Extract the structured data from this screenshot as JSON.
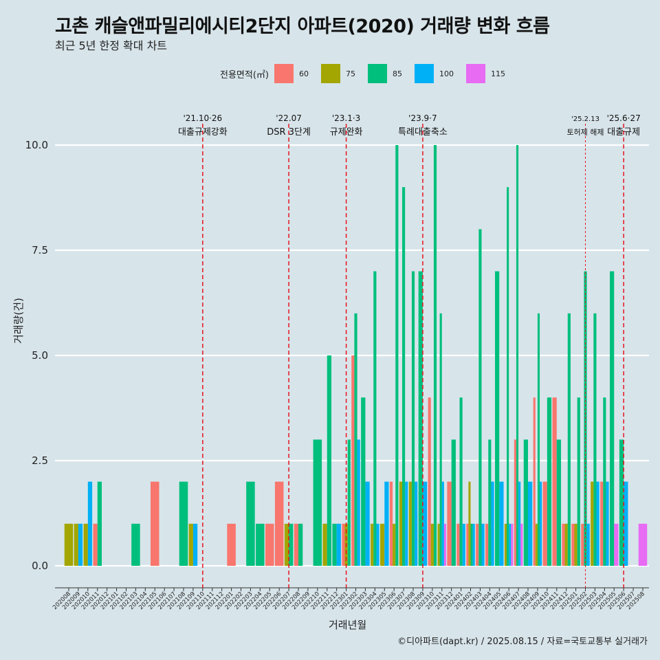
{
  "title": "고촌 캐슬앤파밀리에시티2단지 아파트(2020) 거래량 변화 흐름",
  "subtitle": "최근 5년 한정 확대 차트",
  "caption": "©디아파트(dapt.kr) / 2025.08.15 / 자료=국토교통부 실거래가",
  "legend": {
    "title": "전용면적(㎡)",
    "items": [
      {
        "label": "60",
        "color": "#F8766D"
      },
      {
        "label": "75",
        "color": "#A3A500"
      },
      {
        "label": "85",
        "color": "#00BF7D"
      },
      {
        "label": "100",
        "color": "#00B0F6"
      },
      {
        "label": "115",
        "color": "#E76BF3"
      }
    ]
  },
  "chart_data": {
    "type": "bar",
    "xlabel": "거래년월",
    "ylabel": "거래량(건)",
    "ylim": [
      0,
      10
    ],
    "yticks": [
      "0.0",
      "2.5",
      "5.0",
      "7.5",
      "10.0"
    ],
    "grid": true,
    "legend_position": "top",
    "categories": [
      "202008",
      "202009",
      "202010",
      "202011",
      "202012",
      "202101",
      "202102",
      "202103",
      "202104",
      "202105",
      "202106",
      "202107",
      "202108",
      "202109",
      "202110",
      "202111",
      "202112",
      "202201",
      "202202",
      "202203",
      "202204",
      "202205",
      "202206",
      "202207",
      "202208",
      "202209",
      "202210",
      "202211",
      "202212",
      "202301",
      "202302",
      "202303",
      "202304",
      "202305",
      "202306",
      "202307",
      "202308",
      "202309",
      "202310",
      "202311",
      "202312",
      "202401",
      "202402",
      "202403",
      "202404",
      "202405",
      "202406",
      "202407",
      "202408",
      "202409",
      "202410",
      "202411",
      "202412",
      "202501",
      "202502",
      "202503",
      "202504",
      "202505",
      "202506",
      "202507",
      "202508"
    ],
    "series": [
      {
        "name": "60",
        "color": "#F8766D",
        "values": [
          0,
          0,
          0,
          1,
          0,
          0,
          0,
          0,
          0,
          2,
          0,
          0,
          0,
          0,
          0,
          0,
          0,
          1,
          0,
          0,
          0,
          1,
          2,
          0,
          1,
          0,
          0,
          0,
          0,
          1,
          5,
          0,
          0,
          0,
          2,
          0,
          0,
          0,
          4,
          0,
          2,
          1,
          1,
          1,
          1,
          0,
          0,
          3,
          0,
          4,
          2,
          4,
          1,
          1,
          1,
          0,
          2,
          0,
          0,
          0,
          0
        ]
      },
      {
        "name": "75",
        "color": "#A3A500",
        "values": [
          1,
          1,
          1,
          0,
          0,
          0,
          0,
          0,
          0,
          0,
          0,
          0,
          0,
          1,
          0,
          0,
          0,
          0,
          0,
          0,
          0,
          0,
          0,
          1,
          0,
          0,
          0,
          1,
          0,
          1,
          0,
          0,
          1,
          1,
          1,
          2,
          2,
          0,
          1,
          1,
          0,
          0,
          2,
          0,
          0,
          0,
          1,
          0,
          0,
          1,
          0,
          0,
          1,
          1,
          0,
          2,
          0,
          0,
          0,
          0,
          0
        ]
      },
      {
        "name": "85",
        "color": "#00BF7D",
        "values": [
          0,
          0,
          0,
          2,
          0,
          0,
          0,
          1,
          0,
          0,
          0,
          0,
          2,
          0,
          0,
          0,
          0,
          0,
          0,
          2,
          1,
          0,
          0,
          1,
          1,
          0,
          3,
          5,
          1,
          3,
          6,
          4,
          7,
          0,
          10,
          9,
          7,
          7,
          10,
          6,
          3,
          4,
          1,
          8,
          3,
          7,
          9,
          10,
          3,
          6,
          4,
          3,
          6,
          4,
          7,
          6,
          4,
          7,
          3,
          0,
          0
        ]
      },
      {
        "name": "100",
        "color": "#00B0F6",
        "values": [
          0,
          1,
          2,
          0,
          0,
          0,
          0,
          0,
          0,
          0,
          0,
          0,
          0,
          1,
          0,
          0,
          0,
          0,
          0,
          0,
          0,
          0,
          0,
          0,
          0,
          0,
          0,
          0,
          1,
          0,
          3,
          2,
          1,
          2,
          0,
          2,
          2,
          2,
          0,
          2,
          0,
          1,
          1,
          1,
          2,
          2,
          1,
          2,
          2,
          2,
          0,
          0,
          0,
          0,
          1,
          2,
          2,
          0,
          2,
          0,
          0
        ]
      },
      {
        "name": "115",
        "color": "#E76BF3",
        "values": [
          0,
          0,
          0,
          0,
          0,
          0,
          0,
          0,
          0,
          0,
          0,
          0,
          0,
          0,
          0,
          0,
          0,
          0,
          0,
          0,
          0,
          0,
          0,
          0,
          0,
          0,
          0,
          0,
          0,
          0,
          0,
          0,
          0,
          0,
          0,
          0,
          0,
          0,
          0,
          1,
          0,
          0,
          0,
          0,
          0,
          0,
          1,
          1,
          0,
          0,
          0,
          0,
          0,
          0,
          0,
          0,
          0,
          1,
          0,
          0,
          1
        ]
      }
    ],
    "annotations": [
      {
        "month": "202110",
        "date": "'21.10·26",
        "label": "대출규제강화",
        "style": "dashed"
      },
      {
        "month": "202207",
        "date": "'22.07",
        "label": "DSR 3단계",
        "style": "dashed"
      },
      {
        "month": "202301",
        "date": "'23.1·3",
        "label": "규제완화",
        "style": "dashed"
      },
      {
        "month": "202309",
        "date": "'23.9·7",
        "label": "특례대출축소",
        "style": "dashed"
      },
      {
        "month": "202502",
        "date": "'25.2.13",
        "label": "토허제 해제",
        "style": "dotted"
      },
      {
        "month": "202506",
        "date": "'25.6·27",
        "label": "대출규제",
        "style": "dashed"
      }
    ]
  }
}
